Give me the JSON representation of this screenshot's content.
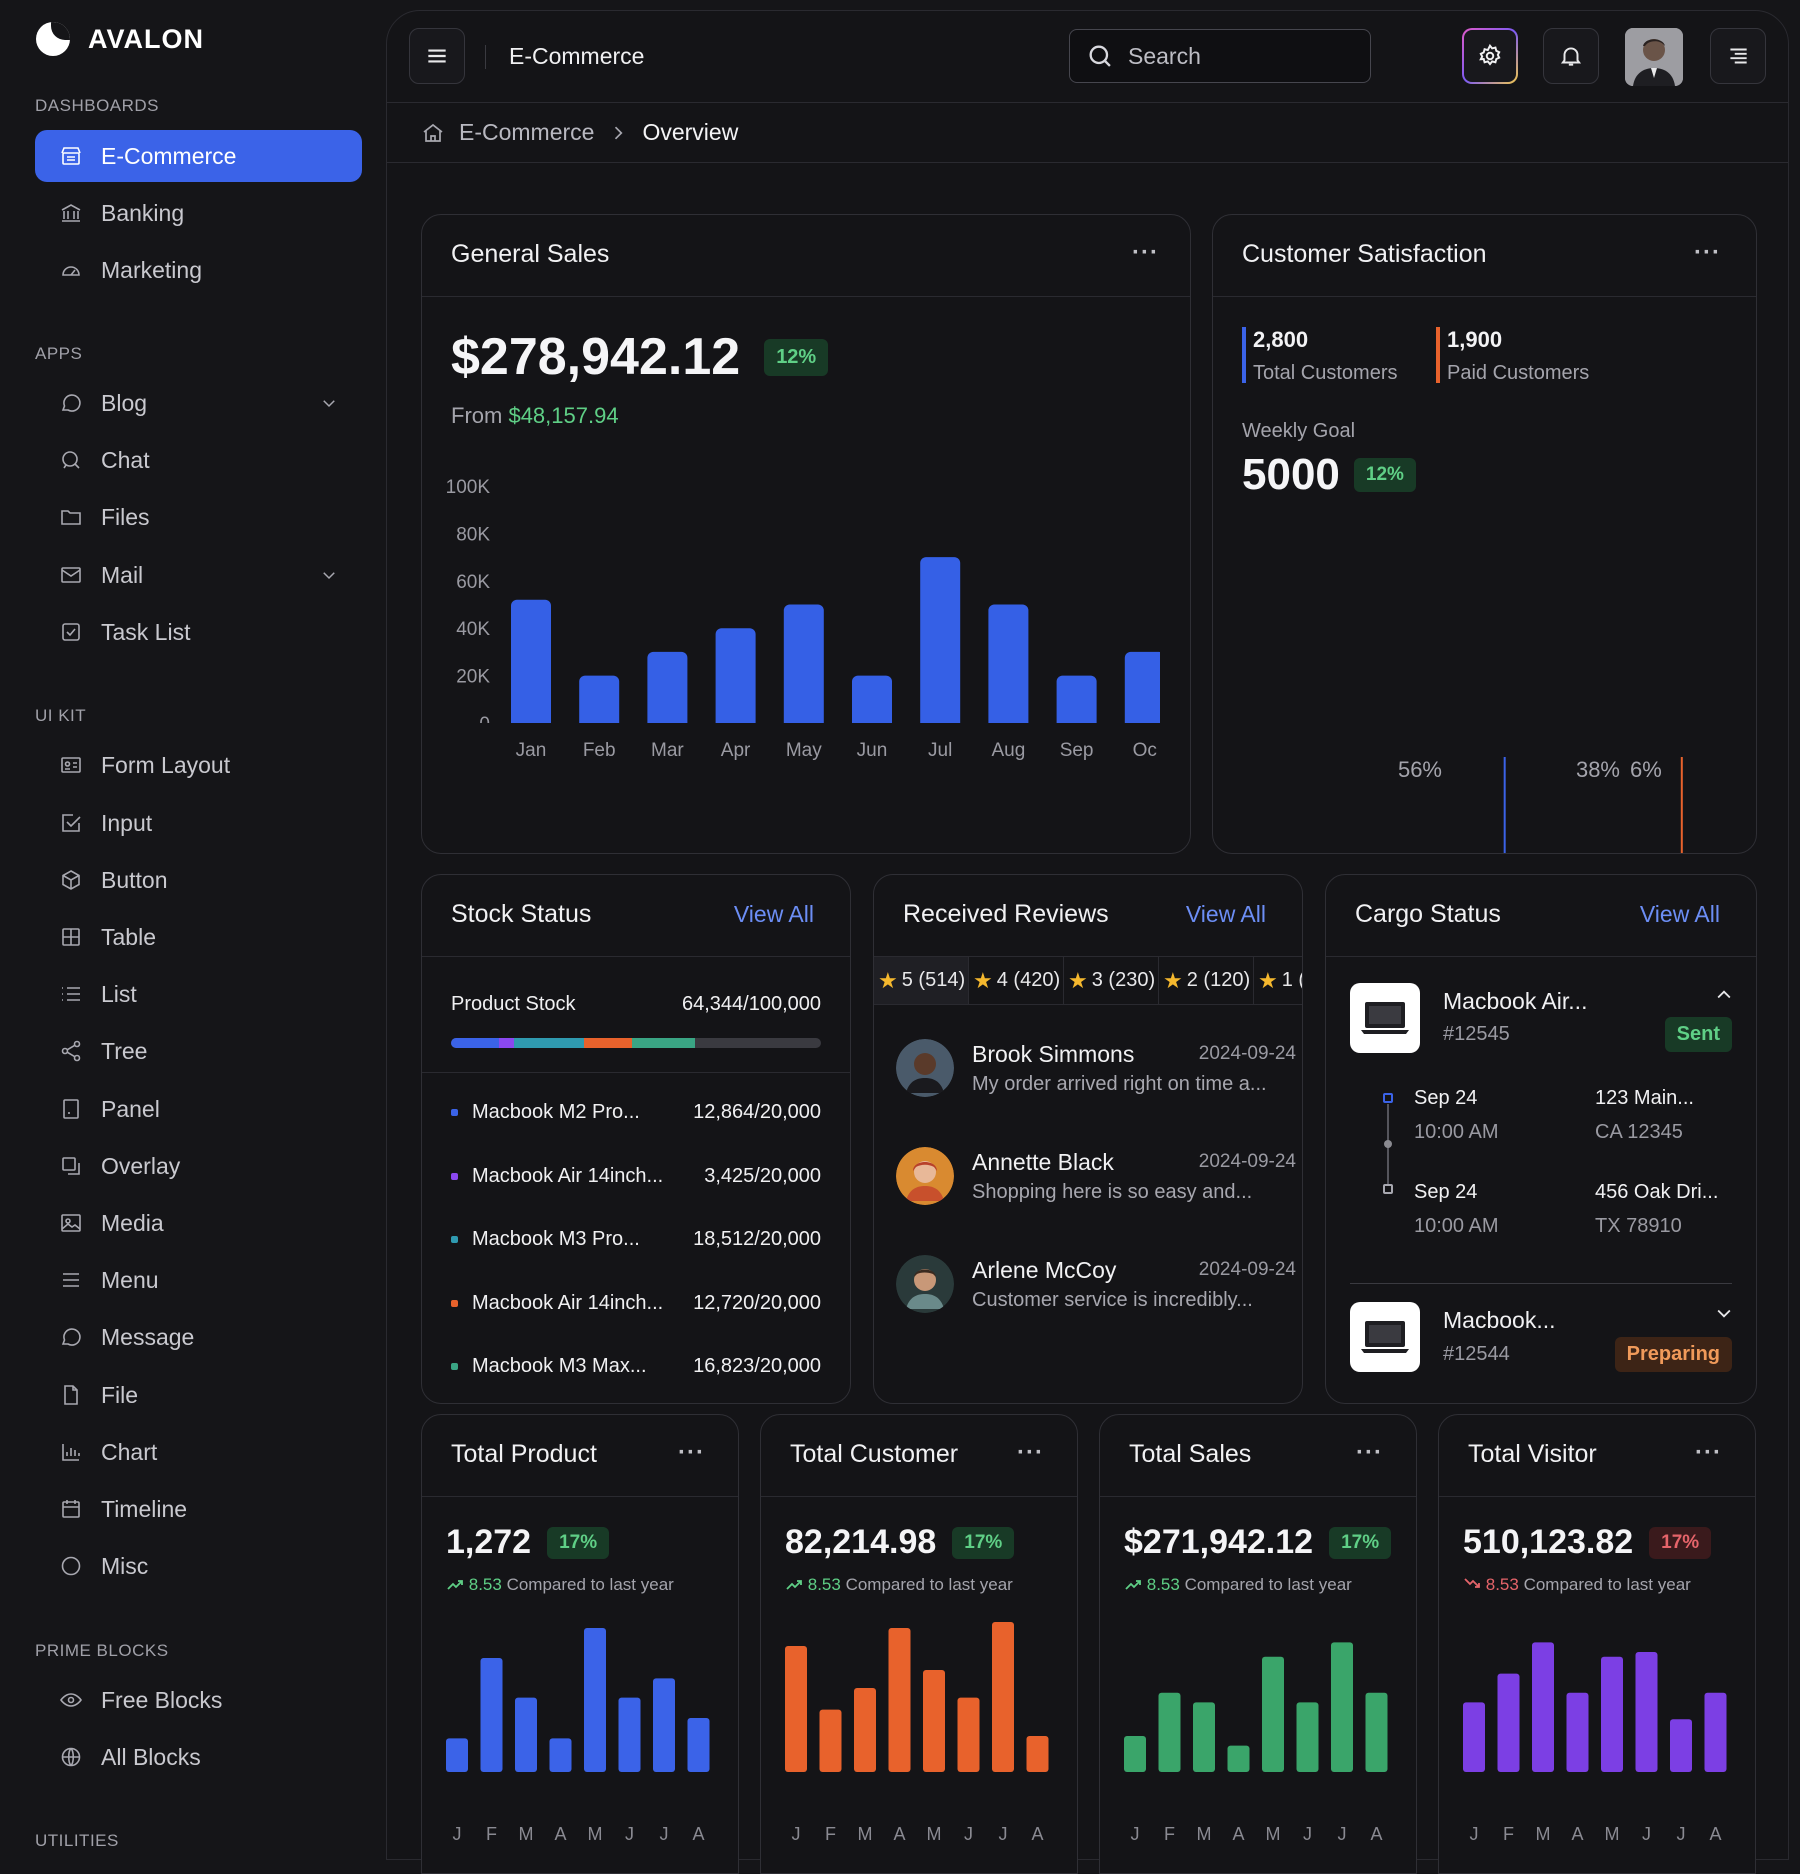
{
  "sidebar": {
    "brand": "AVALON",
    "sections": {
      "dashboards": "DASHBOARDS",
      "apps": "APPS",
      "ui_kit": "UI KIT",
      "prime_blocks": "PRIME BLOCKS",
      "utilities": "UTILITIES"
    },
    "dashboards": [
      {
        "label": "E-Commerce",
        "icon": "storefront-icon",
        "active": true
      },
      {
        "label": "Banking",
        "icon": "bank-icon"
      },
      {
        "label": "Marketing",
        "icon": "gauge-icon"
      }
    ],
    "apps": [
      {
        "label": "Blog",
        "icon": "chat-bubble-icon",
        "expandable": true
      },
      {
        "label": "Chat",
        "icon": "chat-search-icon"
      },
      {
        "label": "Files",
        "icon": "folder-icon"
      },
      {
        "label": "Mail",
        "icon": "mail-icon",
        "expandable": true
      },
      {
        "label": "Task List",
        "icon": "checkbox-icon"
      }
    ],
    "ui_kit": [
      {
        "label": "Form Layout",
        "icon": "id-card-icon"
      },
      {
        "label": "Input",
        "icon": "check-square-icon"
      },
      {
        "label": "Button",
        "icon": "cube-icon"
      },
      {
        "label": "Table",
        "icon": "table-icon"
      },
      {
        "label": "List",
        "icon": "list-icon"
      },
      {
        "label": "Tree",
        "icon": "share-icon"
      },
      {
        "label": "Panel",
        "icon": "panel-icon"
      },
      {
        "label": "Overlay",
        "icon": "copy-icon"
      },
      {
        "label": "Media",
        "icon": "image-icon"
      },
      {
        "label": "Menu",
        "icon": "menu-icon"
      },
      {
        "label": "Message",
        "icon": "message-icon"
      },
      {
        "label": "File",
        "icon": "file-icon"
      },
      {
        "label": "Chart",
        "icon": "bar-chart-icon"
      },
      {
        "label": "Timeline",
        "icon": "calendar-icon"
      },
      {
        "label": "Misc",
        "icon": "circle-icon"
      }
    ],
    "prime_blocks": [
      {
        "label": "Free Blocks",
        "icon": "eye-icon"
      },
      {
        "label": "All Blocks",
        "icon": "globe-icon"
      }
    ]
  },
  "topbar": {
    "title": "E-Commerce",
    "search_placeholder": "Search"
  },
  "breadcrumb": {
    "parent": "E-Commerce",
    "current": "Overview"
  },
  "general_sales": {
    "title": "General Sales",
    "amount": "$278,942.12",
    "badge": "12%",
    "from_label": "From",
    "from_value": "$48,157.94"
  },
  "customer_satisfaction": {
    "title": "Customer Satisfaction",
    "total_customers_value": "2,800",
    "total_customers_label": "Total Customers",
    "paid_customers_value": "1,900",
    "paid_customers_label": "Paid Customers",
    "weekly_goal_label": "Weekly Goal",
    "weekly_goal_value": "5000",
    "weekly_goal_badge": "12%",
    "pct_blue": "56%",
    "pct_orange": "38%",
    "pct_gray": "6%"
  },
  "stock_status": {
    "title": "Stock Status",
    "view_all": "View All",
    "product_stock_label": "Product Stock",
    "product_stock_value": "64,344/100,000",
    "items": [
      {
        "name": "Macbook M2 Pro...",
        "value": "12,864/20,000",
        "color": "#3b63e8"
      },
      {
        "name": "Macbook Air 14inch...",
        "value": "3,425/20,000",
        "color": "#8b48f0"
      },
      {
        "name": "Macbook M3 Pro...",
        "value": "18,512/20,000",
        "color": "#2f9ab0"
      },
      {
        "name": "Macbook Air 14inch...",
        "value": "12,720/20,000",
        "color": "#e8622c"
      },
      {
        "name": "Macbook M3 Max...",
        "value": "16,823/20,000",
        "color": "#3aa584"
      }
    ]
  },
  "reviews": {
    "title": "Received Reviews",
    "view_all": "View All",
    "ratings": [
      "5 (514)",
      "4 (420)",
      "3 (230)",
      "2 (120)",
      "1 ("
    ],
    "items": [
      {
        "name": "Brook Simmons",
        "date": "2024-09-24",
        "text": "My order arrived right on time a..."
      },
      {
        "name": "Annette Black",
        "date": "2024-09-24",
        "text": "Shopping here is so easy and..."
      },
      {
        "name": "Arlene McCoy",
        "date": "2024-09-24",
        "text": "Customer service is incredibly..."
      }
    ]
  },
  "cargo": {
    "title": "Cargo Status",
    "view_all": "View All",
    "shipments": [
      {
        "name": "Macbook Air...",
        "id": "#12545",
        "status": "Sent",
        "steps": [
          {
            "date": "Sep 24",
            "time": "10:00 AM",
            "addr1": "123 Main...",
            "addr2": "CA 12345"
          },
          {
            "date": "Sep 24",
            "time": "10:00 AM",
            "addr1": "456 Oak Dri...",
            "addr2": "TX 78910"
          }
        ]
      },
      {
        "name": "Macbook...",
        "id": "#12544",
        "status": "Preparing"
      }
    ]
  },
  "kpis": [
    {
      "title": "Total Product",
      "value": "1,272",
      "badge": "17%",
      "delta": "8.53",
      "compare": "Compared to last year",
      "trend": "up",
      "color": "#3b63e8",
      "bars": [
        28,
        95,
        62,
        28,
        120,
        62,
        78,
        45
      ]
    },
    {
      "title": "Total Customer",
      "value": "82,214.98",
      "badge": "17%",
      "delta": "8.53",
      "compare": "Compared to last year",
      "trend": "up",
      "color": "#e8622c",
      "bars": [
        105,
        52,
        70,
        120,
        85,
        62,
        125,
        30
      ]
    },
    {
      "title": "Total Sales",
      "value": "$271,942.12",
      "badge": "17%",
      "delta": "8.53",
      "compare": "Compared to last year",
      "trend": "up",
      "color": "#3aa56a",
      "bars": [
        30,
        66,
        58,
        22,
        96,
        58,
        108,
        66
      ]
    },
    {
      "title": "Total Visitor",
      "value": "510,123.82",
      "badge": "17%",
      "delta": "8.53",
      "compare": "Compared to last year",
      "trend": "down",
      "color": "#7c3fe4",
      "bars": [
        58,
        82,
        108,
        66,
        96,
        100,
        44,
        66
      ]
    }
  ],
  "kpi_months": [
    "J",
    "F",
    "M",
    "A",
    "M",
    "J",
    "J",
    "A"
  ],
  "chart_data": [
    {
      "type": "bar",
      "title": "General Sales",
      "categories": [
        "Jan",
        "Feb",
        "Mar",
        "Apr",
        "May",
        "Jun",
        "Jul",
        "Aug",
        "Sep",
        "Oc"
      ],
      "values": [
        52000,
        20000,
        30000,
        40000,
        50000,
        20000,
        70000,
        50000,
        20000,
        30000
      ],
      "y_ticks": [
        "100K",
        "80K",
        "60K",
        "40K",
        "20K",
        "0"
      ],
      "ylim": [
        0,
        100000
      ],
      "color": "#3560e6",
      "grid": false
    },
    {
      "type": "bar",
      "title": "Customer Satisfaction",
      "series": [
        {
          "share": 56,
          "color": "#3b63e8"
        },
        {
          "share": 38,
          "color": "#e8622c"
        },
        {
          "share": 6,
          "color": "#3a3a40"
        }
      ]
    }
  ]
}
